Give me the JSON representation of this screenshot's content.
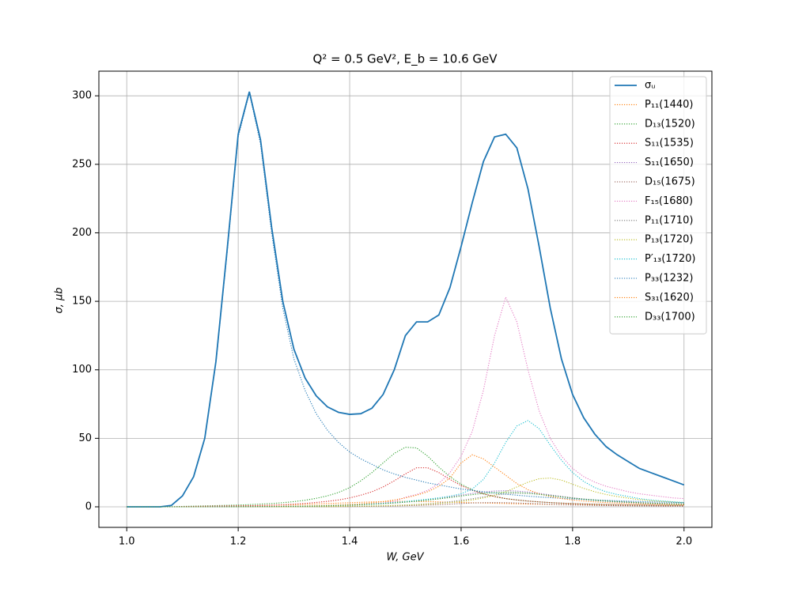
{
  "chart_data": {
    "type": "line",
    "title": "Q² = 0.5 GeV²,  E_b = 10.6 GeV",
    "x_label": "W, GeV",
    "y_label": "σ, μb",
    "x": [
      1.0,
      1.02,
      1.04,
      1.06,
      1.08,
      1.1,
      1.12,
      1.14,
      1.16,
      1.18,
      1.2,
      1.22,
      1.24,
      1.26,
      1.28,
      1.3,
      1.32,
      1.34,
      1.36,
      1.38,
      1.4,
      1.42,
      1.44,
      1.46,
      1.48,
      1.5,
      1.52,
      1.54,
      1.56,
      1.58,
      1.6,
      1.62,
      1.64,
      1.66,
      1.68,
      1.7,
      1.72,
      1.74,
      1.76,
      1.78,
      1.8,
      1.82,
      1.84,
      1.86,
      1.88,
      1.9,
      1.92,
      1.94,
      1.96,
      1.98,
      2.0
    ],
    "series": [
      {
        "name": "σᵤ",
        "color": "#1f77b4",
        "linestyle": "solid",
        "values": [
          0,
          0,
          0,
          0,
          1,
          8,
          22,
          50,
          106,
          187,
          272,
          303,
          268,
          204,
          150,
          115,
          94,
          81,
          73,
          69,
          67.5,
          68,
          72,
          82,
          100,
          125,
          135,
          135,
          140,
          160,
          190,
          222,
          252,
          270,
          272,
          262,
          232,
          190,
          145,
          108,
          82,
          65,
          53,
          44,
          38,
          33,
          28,
          25,
          22,
          19,
          16
        ]
      },
      {
        "name": "P₁₁(1440)",
        "color": "#ff7f0e",
        "linestyle": "dotted",
        "values": [
          0,
          0,
          0,
          0,
          0,
          0.1,
          0.2,
          0.3,
          0.4,
          0.5,
          0.6,
          0.7,
          0.9,
          1.1,
          1.3,
          1.5,
          1.8,
          2.1,
          2.4,
          2.7,
          3,
          3.3,
          3.6,
          3.8,
          4,
          4,
          3.9,
          3.8,
          3.6,
          3.4,
          3.2,
          3,
          2.8,
          2.6,
          2.4,
          2.2,
          2,
          1.9,
          1.8,
          1.7,
          1.6,
          1.5,
          1.4,
          1.3,
          1.2,
          1.1,
          1.1,
          1,
          1,
          0.9,
          0.9
        ]
      },
      {
        "name": "D₁₃(1520)",
        "color": "#2ca02c",
        "linestyle": "dotted",
        "values": [
          0,
          0,
          0,
          0,
          0,
          0.3,
          0.5,
          0.7,
          0.9,
          1.1,
          1.3,
          1.6,
          2,
          2.4,
          3,
          3.8,
          4.8,
          6.2,
          8,
          10.5,
          14,
          19,
          25,
          32,
          39,
          43.5,
          43,
          37,
          29,
          22,
          16.5,
          12.5,
          9.5,
          7.5,
          6,
          5,
          4.2,
          3.6,
          3.1,
          2.7,
          2.4,
          2.1,
          1.9,
          1.7,
          1.5,
          1.4,
          1.3,
          1.2,
          1.1,
          1,
          0.9
        ]
      },
      {
        "name": "S₁₁(1535)",
        "color": "#d62728",
        "linestyle": "dotted",
        "values": [
          0,
          0,
          0,
          0,
          0,
          0.2,
          0.3,
          0.4,
          0.5,
          0.6,
          0.7,
          0.8,
          1,
          1.2,
          1.5,
          2,
          2.5,
          3.2,
          4,
          5,
          6.5,
          8.5,
          11,
          14.5,
          19,
          24,
          28.5,
          28.5,
          25,
          20,
          15.5,
          12,
          9.5,
          7.5,
          6,
          5,
          4.2,
          3.6,
          3.1,
          2.7,
          2.4,
          2.1,
          1.9,
          1.7,
          1.5,
          1.4,
          1.3,
          1.2,
          1.1,
          1,
          1
        ]
      },
      {
        "name": "S₁₁(1650)",
        "color": "#9467bd",
        "linestyle": "dotted",
        "values": [
          0,
          0,
          0,
          0,
          0,
          0,
          0,
          0,
          0.1,
          0.1,
          0.1,
          0.2,
          0.2,
          0.3,
          0.3,
          0.4,
          0.5,
          0.6,
          0.8,
          1,
          1.2,
          1.5,
          1.9,
          2.3,
          2.8,
          3.4,
          4.1,
          5,
          6,
          7.2,
          8.5,
          9.8,
          10.8,
          11.5,
          11.8,
          11.5,
          10.8,
          9.8,
          8.7,
          7.6,
          6.6,
          5.7,
          5,
          4.4,
          3.9,
          3.5,
          3.1,
          2.8,
          2.5,
          2.3,
          2.1
        ]
      },
      {
        "name": "D₁₅(1675)",
        "color": "#8c564b",
        "linestyle": "dotted",
        "values": [
          0,
          0,
          0,
          0,
          0,
          0,
          0,
          0,
          0,
          0,
          0,
          0,
          0,
          0,
          0,
          0,
          0.1,
          0.1,
          0.1,
          0.2,
          0.2,
          0.3,
          0.4,
          0.5,
          0.6,
          0.8,
          1,
          1.3,
          1.6,
          2,
          2.4,
          2.8,
          3,
          3.1,
          3,
          2.8,
          2.5,
          2.2,
          1.9,
          1.6,
          1.4,
          1.2,
          1,
          0.9,
          0.8,
          0.7,
          0.6,
          0.6,
          0.5,
          0.5,
          0.4
        ]
      },
      {
        "name": "F₁₅(1680)",
        "color": "#e377c2",
        "linestyle": "dotted",
        "values": [
          0,
          0,
          0,
          0,
          0,
          0,
          0,
          0,
          0,
          0,
          0.1,
          0.1,
          0.2,
          0.2,
          0.3,
          0.4,
          0.5,
          0.6,
          0.8,
          1,
          1.3,
          1.7,
          2.2,
          2.9,
          3.8,
          7,
          9,
          12,
          17,
          25,
          37,
          55,
          85,
          125,
          153,
          135,
          100,
          70,
          50,
          37,
          28,
          22,
          18,
          15,
          13,
          11,
          9.5,
          8.5,
          7.5,
          6.5,
          6
        ]
      },
      {
        "name": "P₁₁(1710)",
        "color": "#7f7f7f",
        "linestyle": "dotted",
        "values": [
          0,
          0,
          0,
          0,
          0,
          0,
          0,
          0,
          0,
          0,
          0,
          0,
          0,
          0,
          0,
          0.1,
          0.1,
          0.2,
          0.2,
          0.3,
          0.4,
          0.5,
          0.6,
          0.8,
          1,
          1.3,
          1.7,
          2.2,
          2.9,
          3.7,
          4.7,
          5.9,
          7.2,
          8.5,
          9.5,
          10,
          9.8,
          9.2,
          8.3,
          7.3,
          6.3,
          5.4,
          4.6,
          4,
          3.5,
          3.1,
          2.7,
          2.4,
          2.2,
          2,
          1.8
        ]
      },
      {
        "name": "P₁₃(1720)",
        "color": "#bcbd22",
        "linestyle": "dotted",
        "values": [
          0,
          0,
          0,
          0,
          0,
          0,
          0,
          0,
          0,
          0,
          0,
          0,
          0,
          0,
          0,
          0.1,
          0.1,
          0.2,
          0.2,
          0.3,
          0.4,
          0.5,
          0.6,
          0.8,
          1,
          1.3,
          1.6,
          2,
          2.5,
          3.1,
          3.9,
          5,
          6.5,
          8.5,
          11,
          14.5,
          18,
          20.5,
          21,
          19.5,
          16.5,
          13.5,
          11,
          9,
          7.5,
          6.3,
          5.3,
          4.5,
          3.9,
          3.4,
          3
        ]
      },
      {
        "name": "P′₁₃(1720)",
        "color": "#17becf",
        "linestyle": "dotted",
        "values": [
          0,
          0,
          0,
          0,
          0,
          0,
          0,
          0,
          0,
          0,
          0.1,
          0.1,
          0.2,
          0.2,
          0.3,
          0.4,
          0.5,
          0.7,
          0.9,
          1.1,
          1.4,
          1.7,
          2.1,
          2.6,
          3.2,
          3.9,
          4.7,
          5.6,
          6.6,
          7.8,
          9.5,
          13,
          20,
          32,
          47,
          59,
          63,
          57,
          45,
          34,
          25,
          18.5,
          14,
          11,
          9,
          7.5,
          6,
          5,
          4.3,
          3.7,
          3.2
        ]
      },
      {
        "name": "P₃₃(1232)",
        "color": "#1f77b4",
        "linestyle": "dotted",
        "values": [
          0,
          0,
          0,
          0,
          1,
          8,
          22,
          50,
          105,
          185,
          270,
          302,
          265,
          200,
          145,
          108,
          85,
          68,
          56,
          47,
          40,
          35,
          31,
          27,
          24,
          21.5,
          19.5,
          17.5,
          16,
          14.5,
          13,
          12,
          11,
          10,
          9.2,
          8.5,
          7.8,
          7.2,
          6.7,
          6.2,
          5.8,
          5.4,
          5,
          4.7,
          4.4,
          4.1,
          3.9,
          3.6,
          3.4,
          3.2,
          3
        ]
      },
      {
        "name": "S₃₁(1620)",
        "color": "#ff7f0e",
        "linestyle": "dotted",
        "values": [
          0,
          0,
          0,
          0,
          0,
          0,
          0,
          0,
          0,
          0,
          0.1,
          0.1,
          0.1,
          0.2,
          0.2,
          0.5,
          0.6,
          0.8,
          1,
          1.3,
          1.7,
          2.2,
          2.9,
          3.8,
          5,
          6.5,
          8.5,
          11,
          15,
          21,
          32,
          38,
          35,
          29,
          23,
          17,
          12.5,
          9.5,
          7.5,
          6,
          5,
          4.2,
          3.6,
          3.1,
          2.7,
          2.4,
          2.1,
          1.9,
          1.7,
          1.6,
          1.5
        ]
      },
      {
        "name": "D₃₃(1700)",
        "color": "#2ca02c",
        "linestyle": "dotted",
        "values": [
          0,
          0,
          0,
          0,
          0,
          0,
          0,
          0,
          0,
          0,
          0.1,
          0.1,
          0.2,
          0.2,
          0.3,
          0.4,
          0.5,
          0.6,
          0.8,
          1,
          1.2,
          1.5,
          1.9,
          2.3,
          2.8,
          3.4,
          4.1,
          4.9,
          5.8,
          6.8,
          7.9,
          8.9,
          9.8,
          10.4,
          10.6,
          10.4,
          9.9,
          9.1,
          8.2,
          7.3,
          6.4,
          5.6,
          4.9,
          4.3,
          3.8,
          3.4,
          3,
          2.7,
          2.4,
          2.2,
          2
        ]
      }
    ],
    "xlim": [
      0.95,
      2.05
    ],
    "xticks": [
      {
        "value": 1,
        "label": "1.0"
      },
      1.2,
      1.4,
      1.6,
      1.8,
      {
        "value": 2,
        "label": "2.0"
      }
    ],
    "ylim": [
      -15,
      318
    ],
    "yticks": [
      0,
      50,
      100,
      150,
      200,
      250,
      300
    ],
    "grid": true,
    "legend": "upper right"
  }
}
